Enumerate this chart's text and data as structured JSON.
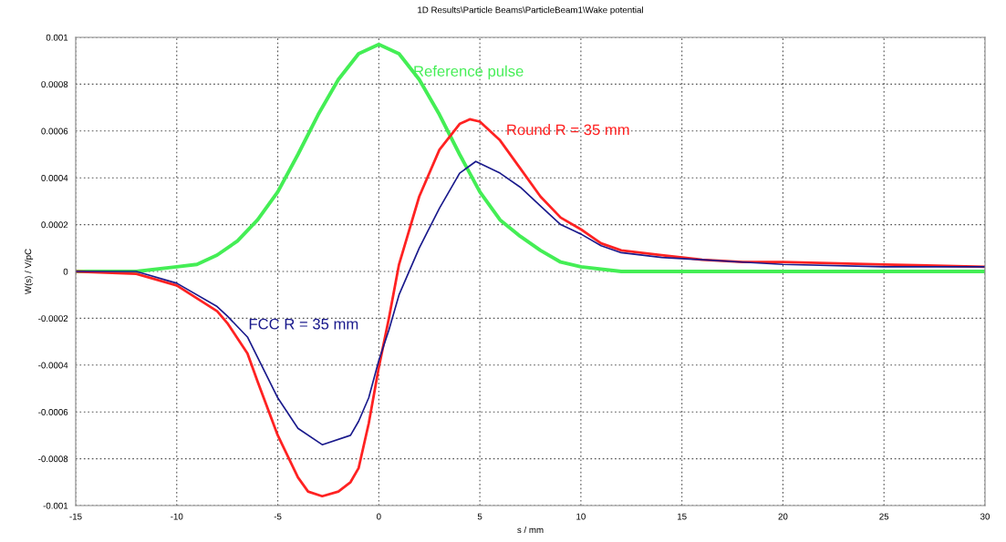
{
  "chart_data": {
    "type": "line",
    "title": "1D Results\\Particle Beams\\ParticleBeam1\\Wake potential",
    "xlabel": "s / mm",
    "ylabel": "W(s) / V/pC",
    "xlim": [
      -15,
      30
    ],
    "xticks": [
      -15,
      -10,
      -5,
      0,
      5,
      10,
      15,
      20,
      25,
      30
    ],
    "ylim": [
      -0.001,
      0.001
    ],
    "yticks": [
      -0.001,
      -0.0008,
      -0.0006,
      -0.0004,
      -0.0002,
      0,
      0.0002,
      0.0004,
      0.0006,
      0.0008,
      0.001
    ],
    "grid": true,
    "legend": false,
    "marker": "none",
    "line_style": "solid",
    "series": [
      {
        "name": "Reference pulse",
        "color": "#44ee55",
        "x": [
          -15,
          -12,
          -10,
          -9,
          -8,
          -7,
          -6,
          -5,
          -4,
          -3,
          -2,
          -1,
          0,
          1,
          2,
          3,
          4,
          5,
          6,
          7,
          8,
          9,
          10,
          12,
          15,
          20,
          25,
          30
        ],
        "values": [
          0,
          0,
          2e-05,
          3e-05,
          7e-05,
          0.00013,
          0.00022,
          0.00034,
          0.0005,
          0.00067,
          0.00082,
          0.00093,
          0.00097,
          0.00093,
          0.00082,
          0.00067,
          0.0005,
          0.00034,
          0.00022,
          0.00015,
          9e-05,
          4e-05,
          2e-05,
          0,
          0,
          0,
          0,
          0
        ]
      },
      {
        "name": "Round R = 35 mm",
        "color": "#ff2222",
        "x": [
          -15,
          -12,
          -10,
          -8,
          -7.5,
          -6.5,
          -6,
          -5,
          -4,
          -3.5,
          -2.8,
          -2,
          -1.4,
          -1,
          -0.5,
          0,
          0.5,
          1,
          2,
          3,
          4,
          4.5,
          5,
          6,
          7,
          8,
          9,
          10,
          11,
          12,
          14,
          16,
          18,
          20,
          25,
          30
        ],
        "values": [
          0,
          -1e-05,
          -6e-05,
          -0.00017,
          -0.00022,
          -0.00035,
          -0.00047,
          -0.0007,
          -0.00088,
          -0.00094,
          -0.00096,
          -0.00094,
          -0.0009,
          -0.00084,
          -0.00065,
          -0.00041,
          -0.0002,
          3e-05,
          0.00032,
          0.00052,
          0.00063,
          0.00065,
          0.00064,
          0.00056,
          0.00044,
          0.00032,
          0.00023,
          0.00018,
          0.00012,
          9e-05,
          7e-05,
          5e-05,
          4e-05,
          4e-05,
          3e-05,
          2e-05
        ]
      },
      {
        "name": "FCC R = 35 mm",
        "color": "#1a1a8c",
        "x": [
          -15,
          -12,
          -10,
          -8,
          -7.5,
          -6.5,
          -5,
          -4,
          -2.8,
          -1.4,
          -1,
          -0.5,
          0,
          0.5,
          1,
          2,
          3,
          4,
          4.8,
          6,
          7,
          8,
          9,
          10,
          11,
          12,
          14,
          16,
          18,
          20,
          25,
          30
        ],
        "values": [
          0,
          0,
          -5e-05,
          -0.00015,
          -0.00019,
          -0.00028,
          -0.00054,
          -0.00067,
          -0.00074,
          -0.0007,
          -0.00064,
          -0.00054,
          -0.00038,
          -0.00025,
          -0.0001,
          0.0001,
          0.00027,
          0.00042,
          0.00047,
          0.00042,
          0.00036,
          0.00028,
          0.0002,
          0.00016,
          0.00011,
          8e-05,
          6e-05,
          5e-05,
          4e-05,
          3e-05,
          2e-05,
          2e-05
        ]
      }
    ]
  }
}
